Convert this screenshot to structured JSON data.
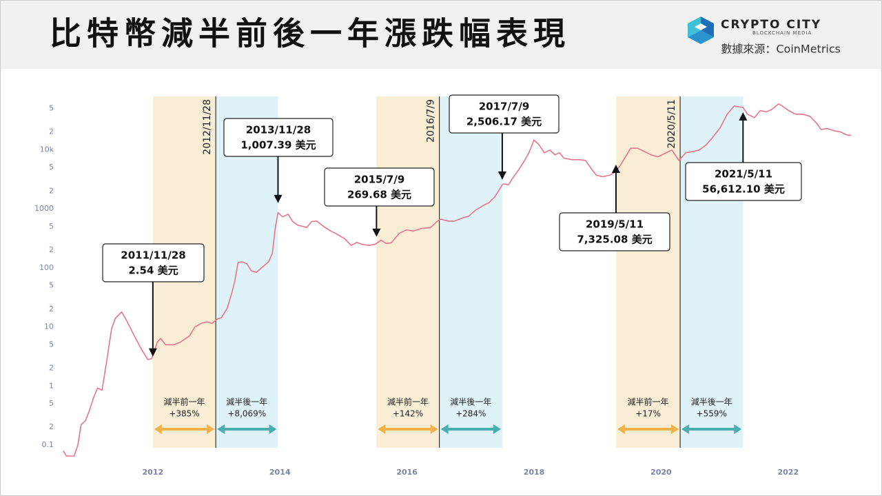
{
  "header": {
    "title": "比特幣減半前後一年漲跌幅表現",
    "logo": "CRYPTO CITY",
    "logo_sub": "BLOCKCHAIN MEDIA",
    "source": "數據來源：CoinMetrics"
  },
  "chart_data": {
    "type": "line",
    "log_scale": true,
    "grid": false,
    "color": "#e8738a",
    "xlim": [
      2010.57,
      2023.0
    ],
    "ylim": [
      0.06,
      80000
    ],
    "xticks": [
      2012,
      2014,
      2016,
      2018,
      2020,
      2022
    ],
    "yticks": [
      0.1,
      {
        "value": 0.2,
        "label": "2"
      },
      {
        "value": 0.5,
        "label": "5"
      },
      1,
      2,
      5,
      10,
      {
        "value": 20,
        "label": "2"
      },
      {
        "value": 50,
        "label": "5"
      },
      100,
      {
        "value": 200,
        "label": "2"
      },
      {
        "value": 500,
        "label": "5"
      },
      1000,
      {
        "value": 2000,
        "label": "2"
      },
      {
        "value": 5000,
        "label": "5"
      },
      {
        "value": 10000,
        "label": "10k"
      },
      {
        "value": 20000,
        "label": "2"
      },
      {
        "value": 50000,
        "label": "5"
      }
    ],
    "x": [
      2010.59,
      2010.64,
      2010.76,
      2010.82,
      2010.87,
      2010.94,
      2011.0,
      2011.07,
      2011.13,
      2011.2,
      2011.27,
      2011.35,
      2011.41,
      2011.51,
      2011.6,
      2011.71,
      2011.82,
      2011.92,
      2011.98,
      2012.07,
      2012.12,
      2012.2,
      2012.33,
      2012.43,
      2012.58,
      2012.66,
      2012.76,
      2012.85,
      2012.93,
      2013.01,
      2013.08,
      2013.17,
      2013.24,
      2013.29,
      2013.34,
      2013.41,
      2013.48,
      2013.55,
      2013.63,
      2013.71,
      2013.82,
      2013.88,
      2013.93,
      2013.97,
      2014.04,
      2014.13,
      2014.2,
      2014.28,
      2014.37,
      2014.42,
      2014.5,
      2014.58,
      2014.69,
      2014.8,
      2014.91,
      2015.02,
      2015.12,
      2015.21,
      2015.29,
      2015.4,
      2015.5,
      2015.59,
      2015.67,
      2015.75,
      2015.88,
      2015.99,
      2016.1,
      2016.23,
      2016.37,
      2016.48,
      2016.53,
      2016.64,
      2016.75,
      2016.86,
      2016.97,
      2017.08,
      2017.19,
      2017.29,
      2017.38,
      2017.46,
      2017.51,
      2017.6,
      2017.67,
      2017.75,
      2017.84,
      2017.92,
      2018.0,
      2018.08,
      2018.16,
      2018.25,
      2018.33,
      2018.4,
      2018.47,
      2018.6,
      2018.71,
      2018.81,
      2018.9,
      2018.98,
      2019.08,
      2019.19,
      2019.28,
      2019.36,
      2019.44,
      2019.52,
      2019.63,
      2019.74,
      2019.84,
      2019.95,
      2020.06,
      2020.17,
      2020.28,
      2020.39,
      2020.5,
      2020.6,
      2020.71,
      2020.82,
      2020.93,
      2021.04,
      2021.15,
      2021.29,
      2021.36,
      2021.47,
      2021.56,
      2021.66,
      2021.74,
      2021.85,
      2021.94,
      2022.01,
      2022.12,
      2022.23,
      2022.34,
      2022.45,
      2022.52,
      2022.61,
      2022.72,
      2022.83,
      2022.91,
      2022.99
    ],
    "values": [
      0.08,
      0.065,
      0.065,
      0.1,
      0.22,
      0.26,
      0.38,
      0.65,
      0.92,
      0.85,
      2.5,
      9.3,
      14,
      18,
      12,
      7,
      4.2,
      2.8,
      2.9,
      5.5,
      6.4,
      5,
      5,
      5.5,
      7.1,
      10,
      11.5,
      12.2,
      11.5,
      13.5,
      14.3,
      20.7,
      37,
      60,
      123,
      126,
      117,
      89,
      84,
      100,
      126,
      175,
      500,
      860,
      730,
      810,
      610,
      530,
      500,
      480,
      610,
      620,
      500,
      420,
      365,
      310,
      240,
      270,
      250,
      240,
      250,
      295,
      260,
      265,
      385,
      440,
      420,
      465,
      480,
      620,
      670,
      620,
      620,
      690,
      750,
      950,
      1120,
      1270,
      1590,
      2170,
      2630,
      2560,
      3390,
      4440,
      6300,
      8900,
      14600,
      12100,
      8900,
      9900,
      8200,
      8900,
      7200,
      6800,
      6800,
      6600,
      4800,
      3700,
      3500,
      3700,
      4200,
      5500,
      7600,
      10600,
      10600,
      9300,
      8200,
      7600,
      8700,
      9900,
      6600,
      8900,
      9300,
      9900,
      12100,
      16600,
      23700,
      40000,
      55000,
      52000,
      40000,
      35000,
      46000,
      44000,
      48000,
      60000,
      52000,
      46000,
      40000,
      40000,
      37000,
      28000,
      22000,
      23000,
      21000,
      20000,
      18000,
      17500
    ],
    "halvings": [
      {
        "label": "2012/11/28",
        "x": 2012.99
      },
      {
        "label": "2016/7/9",
        "x": 2016.51
      },
      {
        "label": "2020/5/11",
        "x": 2020.3
      }
    ],
    "bands": [
      {
        "name": "減半前一年",
        "start": 2012.0,
        "end": 2012.99,
        "value": 385,
        "value_label": "+385%",
        "color": "#f9edd5",
        "arrow_color": "#f0b24a"
      },
      {
        "name": "減半後一年",
        "start": 2012.99,
        "end": 2013.97,
        "value": 8069,
        "value_label": "+8,069%",
        "color": "#dff2f8",
        "arrow_color": "#4aaeb0"
      },
      {
        "name": "減半前一年",
        "start": 2015.52,
        "end": 2016.51,
        "value": 142,
        "value_label": "+142%",
        "color": "#f9edd5",
        "arrow_color": "#f0b24a"
      },
      {
        "name": "減半後一年",
        "start": 2016.51,
        "end": 2017.5,
        "value": 284,
        "value_label": "+284%",
        "color": "#dff2f8",
        "arrow_color": "#4aaeb0"
      },
      {
        "name": "減半前一年",
        "start": 2019.29,
        "end": 2020.3,
        "value": 17,
        "value_label": "+17%",
        "color": "#f9edd5",
        "arrow_color": "#f0b24a"
      },
      {
        "name": "減半後一年",
        "start": 2020.3,
        "end": 2021.29,
        "value": 559,
        "value_label": "+559%",
        "color": "#dff2f8",
        "arrow_color": "#4aaeb0"
      }
    ],
    "annotations": [
      {
        "date": "2011/11/28",
        "x": 2012.0,
        "value": 2.54,
        "value_label": "2.54 美元"
      },
      {
        "date": "2013/11/28",
        "x": 2013.97,
        "value": 1007.39,
        "value_label": "1,007.39 美元"
      },
      {
        "date": "2015/7/9",
        "x": 2015.52,
        "value": 269.68,
        "value_label": "269.68 美元"
      },
      {
        "date": "2017/7/9",
        "x": 2017.5,
        "value": 2506.17,
        "value_label": "2,506.17 美元"
      },
      {
        "date": "2019/5/11",
        "x": 2019.29,
        "value": 7325.08,
        "value_label": "7,325.08 美元"
      },
      {
        "date": "2021/5/11",
        "x": 2021.29,
        "value": 56612.1,
        "value_label": "56,612.10 美元"
      }
    ]
  }
}
